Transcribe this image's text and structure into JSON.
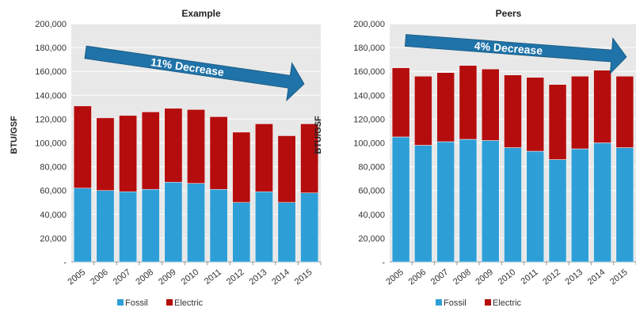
{
  "colors": {
    "fossil": "#2e9fd6",
    "electric": "#b50d0d",
    "plot_bg": "#e8e8e8",
    "arrow": "#1f73a8"
  },
  "chart_data": [
    {
      "type": "bar",
      "stacked": true,
      "title": "Example",
      "ylabel": "BTU/GSF",
      "categories": [
        "2005",
        "2006",
        "2007",
        "2008",
        "2009",
        "2010",
        "2011",
        "2012",
        "2013",
        "2014",
        "2015"
      ],
      "series": [
        {
          "name": "Fossil",
          "values": [
            62000,
            60000,
            59000,
            61000,
            67000,
            66000,
            61000,
            50000,
            59000,
            50000,
            58000
          ]
        },
        {
          "name": "Electric",
          "values": [
            69000,
            61000,
            64000,
            65000,
            62000,
            62000,
            61000,
            59000,
            57000,
            56000,
            58000
          ]
        }
      ],
      "ylim": [
        0,
        200000
      ],
      "yticks": [
        "-",
        "20,000",
        "40,000",
        "60,000",
        "80,000",
        "100,000",
        "120,000",
        "140,000",
        "160,000",
        "180,000",
        "200,000"
      ],
      "annotation": "11% Decrease",
      "legend": "bottom"
    },
    {
      "type": "bar",
      "stacked": true,
      "title": "Peers",
      "ylabel": "BTU/GSF",
      "categories": [
        "2005",
        "2006",
        "2007",
        "2008",
        "2009",
        "2010",
        "2011",
        "2012",
        "2013",
        "2014",
        "2015"
      ],
      "series": [
        {
          "name": "Fossil",
          "values": [
            105000,
            98000,
            101000,
            103000,
            102000,
            96000,
            93000,
            86000,
            95000,
            100000,
            96000
          ]
        },
        {
          "name": "Electric",
          "values": [
            58000,
            58000,
            58000,
            62000,
            60000,
            61000,
            62000,
            63000,
            61000,
            61000,
            60000
          ]
        }
      ],
      "ylim": [
        0,
        200000
      ],
      "yticks": [
        "-",
        "20,000",
        "40,000",
        "60,000",
        "80,000",
        "100,000",
        "120,000",
        "140,000",
        "160,000",
        "180,000",
        "200,000"
      ],
      "annotation": "4% Decrease",
      "legend": "bottom"
    }
  ]
}
